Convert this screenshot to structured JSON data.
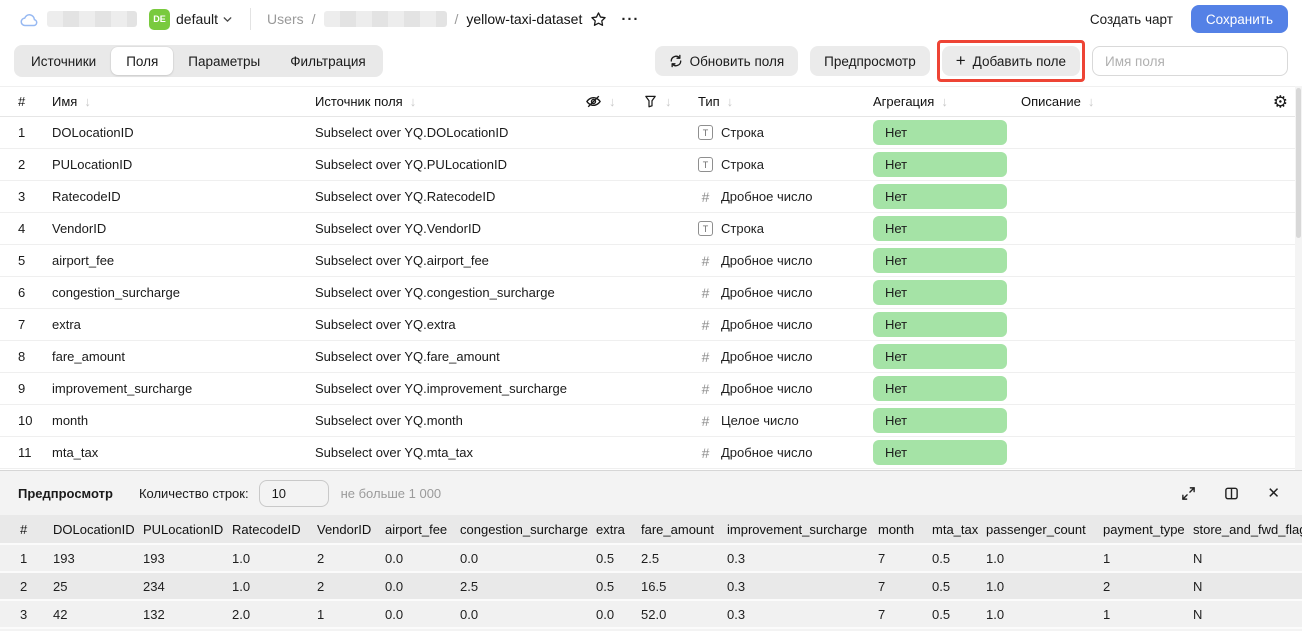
{
  "header": {
    "folder_badge": "DE",
    "folder_name": "default",
    "breadcrumb": {
      "root": "Users",
      "separator": "/",
      "current": "yellow-taxi-dataset"
    },
    "actions": {
      "create_chart": "Создать чарт",
      "save": "Сохранить"
    }
  },
  "toolbar": {
    "tabs": {
      "sources": "Источники",
      "fields": "Поля",
      "parameters": "Параметры",
      "filtering": "Фильтрация"
    },
    "update_fields": "Обновить поля",
    "preview": "Предпросмотр",
    "add_field": "Добавить поле",
    "field_name_placeholder": "Имя поля"
  },
  "fields_table": {
    "columns": {
      "index": "#",
      "name": "Имя",
      "source": "Источник поля",
      "type": "Тип",
      "aggregation": "Агрегация",
      "description": "Описание"
    },
    "rows": [
      {
        "index": "1",
        "name": "DOLocationID",
        "source": "Subselect over YQ.DOLocationID",
        "type": "Строка",
        "type_kind": "string",
        "aggregation": "Нет",
        "description": ""
      },
      {
        "index": "2",
        "name": "PULocationID",
        "source": "Subselect over YQ.PULocationID",
        "type": "Строка",
        "type_kind": "string",
        "aggregation": "Нет",
        "description": ""
      },
      {
        "index": "3",
        "name": "RatecodeID",
        "source": "Subselect over YQ.RatecodeID",
        "type": "Дробное число",
        "type_kind": "number",
        "aggregation": "Нет",
        "description": ""
      },
      {
        "index": "4",
        "name": "VendorID",
        "source": "Subselect over YQ.VendorID",
        "type": "Строка",
        "type_kind": "string",
        "aggregation": "Нет",
        "description": ""
      },
      {
        "index": "5",
        "name": "airport_fee",
        "source": "Subselect over YQ.airport_fee",
        "type": "Дробное число",
        "type_kind": "number",
        "aggregation": "Нет",
        "description": ""
      },
      {
        "index": "6",
        "name": "congestion_surcharge",
        "source": "Subselect over YQ.congestion_surcharge",
        "type": "Дробное число",
        "type_kind": "number",
        "aggregation": "Нет",
        "description": ""
      },
      {
        "index": "7",
        "name": "extra",
        "source": "Subselect over YQ.extra",
        "type": "Дробное число",
        "type_kind": "number",
        "aggregation": "Нет",
        "description": ""
      },
      {
        "index": "8",
        "name": "fare_amount",
        "source": "Subselect over YQ.fare_amount",
        "type": "Дробное число",
        "type_kind": "number",
        "aggregation": "Нет",
        "description": ""
      },
      {
        "index": "9",
        "name": "improvement_surcharge",
        "source": "Subselect over YQ.improvement_surcharge",
        "type": "Дробное число",
        "type_kind": "number",
        "aggregation": "Нет",
        "description": ""
      },
      {
        "index": "10",
        "name": "month",
        "source": "Subselect over YQ.month",
        "type": "Целое число",
        "type_kind": "number",
        "aggregation": "Нет",
        "description": ""
      },
      {
        "index": "11",
        "name": "mta_tax",
        "source": "Subselect over YQ.mta_tax",
        "type": "Дробное число",
        "type_kind": "number",
        "aggregation": "Нет",
        "description": ""
      }
    ]
  },
  "preview": {
    "title": "Предпросмотр",
    "row_count_label": "Количество строк:",
    "row_count_value": "10",
    "row_count_hint": "не больше 1 000",
    "columns": [
      "#",
      "DOLocationID",
      "PULocationID",
      "RatecodeID",
      "VendorID",
      "airport_fee",
      "congestion_surcharge",
      "extra",
      "fare_amount",
      "improvement_surcharge",
      "month",
      "mta_tax",
      "passenger_count",
      "payment_type",
      "store_and_fwd_flag"
    ],
    "rows": [
      [
        "1",
        "193",
        "193",
        "1.0",
        "2",
        "0.0",
        "0.0",
        "0.5",
        "2.5",
        "0.3",
        "7",
        "0.5",
        "1.0",
        "1",
        "N"
      ],
      [
        "2",
        "25",
        "234",
        "1.0",
        "2",
        "0.0",
        "2.5",
        "0.5",
        "16.5",
        "0.3",
        "7",
        "0.5",
        "1.0",
        "2",
        "N"
      ],
      [
        "3",
        "42",
        "132",
        "2.0",
        "1",
        "0.0",
        "0.0",
        "0.0",
        "52.0",
        "0.3",
        "7",
        "0.5",
        "1.0",
        "1",
        "N"
      ]
    ]
  },
  "icons": {
    "gear": "⚙",
    "ellipsis": "···",
    "close": "✕",
    "plus": "+",
    "sort_arrow": "↓",
    "hash": "#",
    "string_type": "T"
  },
  "colors": {
    "accent_blue": "#5481e6",
    "pill_green": "#a5e3a6",
    "annotation_red": "#ee4435",
    "badge_green": "#79ca3e"
  }
}
